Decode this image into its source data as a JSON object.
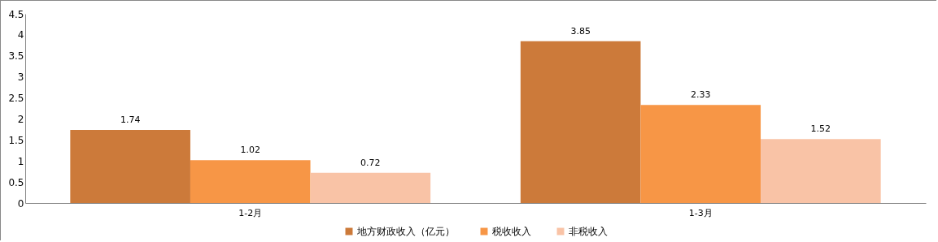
{
  "chart_data": {
    "type": "bar",
    "categories": [
      "1-2月",
      "1-3月"
    ],
    "series": [
      {
        "name": "地方财政收入（亿元）",
        "color": "#cc7a3a",
        "values": [
          1.74,
          3.85
        ]
      },
      {
        "name": "税收收入",
        "color": "#f79646",
        "values": [
          1.02,
          2.33
        ]
      },
      {
        "name": "非税收入",
        "color": "#f9c3a6",
        "values": [
          0.72,
          1.52
        ]
      }
    ],
    "ylim": [
      0,
      4.5
    ],
    "yticks": [
      0,
      0.5,
      1,
      1.5,
      2,
      2.5,
      3,
      3.5,
      4,
      4.5
    ],
    "grid": false,
    "legend": "bottom",
    "data_labels": true
  }
}
